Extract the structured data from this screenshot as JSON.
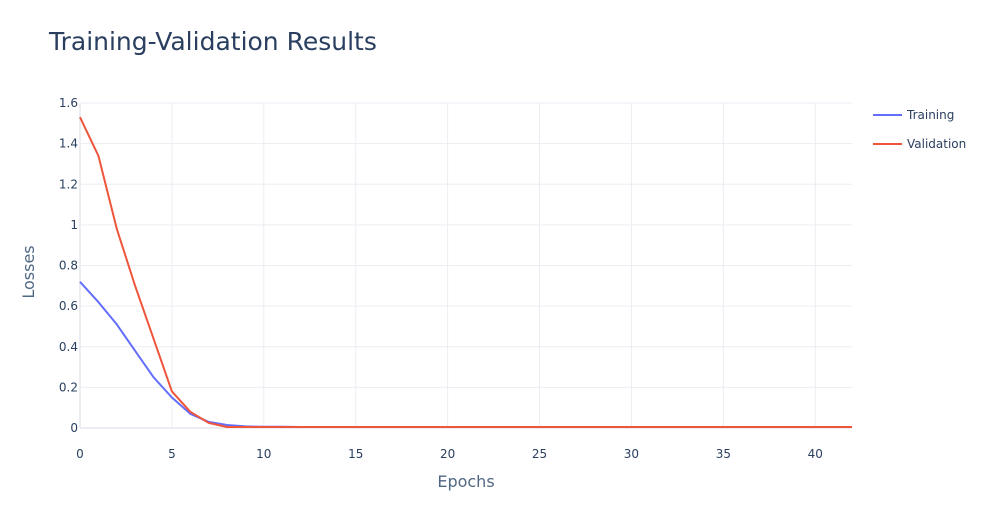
{
  "chart_data": {
    "type": "line",
    "title": "Training-Validation Results",
    "xlabel": "Epochs",
    "ylabel": "Losses",
    "xlim": [
      0,
      42
    ],
    "ylim": [
      0,
      1.6
    ],
    "xticks": [
      0,
      5,
      10,
      15,
      20,
      25,
      30,
      35,
      40
    ],
    "yticks": [
      0,
      0.2,
      0.4,
      0.6,
      0.8,
      1,
      1.2,
      1.4,
      1.6
    ],
    "grid": true,
    "legend_position": "top-right",
    "x": [
      0,
      1,
      2,
      3,
      4,
      5,
      6,
      7,
      8,
      9,
      10,
      11,
      12,
      13,
      14,
      15,
      16,
      17,
      18,
      19,
      20,
      21,
      22,
      23,
      24,
      25,
      26,
      27,
      28,
      29,
      30,
      31,
      32,
      33,
      34,
      35,
      36,
      37,
      38,
      39,
      40,
      41,
      42
    ],
    "series": [
      {
        "name": "Training",
        "color": "#636efa",
        "values": [
          0.72,
          0.62,
          0.51,
          0.38,
          0.25,
          0.15,
          0.07,
          0.03,
          0.015,
          0.008,
          0.006,
          0.006,
          0.005,
          0.005,
          0.005,
          0.005,
          0.005,
          0.005,
          0.005,
          0.005,
          0.005,
          0.005,
          0.005,
          0.005,
          0.005,
          0.005,
          0.005,
          0.005,
          0.005,
          0.005,
          0.005,
          0.005,
          0.005,
          0.005,
          0.005,
          0.005,
          0.005,
          0.005,
          0.005,
          0.005,
          0.005,
          0.005,
          0.005
        ]
      },
      {
        "name": "Validation",
        "color": "#ef553b",
        "values": [
          1.53,
          1.34,
          0.98,
          0.7,
          0.44,
          0.18,
          0.08,
          0.025,
          0.005,
          0.005,
          0.005,
          0.005,
          0.005,
          0.005,
          0.005,
          0.005,
          0.005,
          0.005,
          0.005,
          0.005,
          0.005,
          0.005,
          0.005,
          0.005,
          0.005,
          0.005,
          0.005,
          0.005,
          0.005,
          0.005,
          0.005,
          0.005,
          0.005,
          0.005,
          0.005,
          0.005,
          0.005,
          0.005,
          0.005,
          0.005,
          0.005,
          0.005,
          0.005
        ]
      }
    ]
  }
}
